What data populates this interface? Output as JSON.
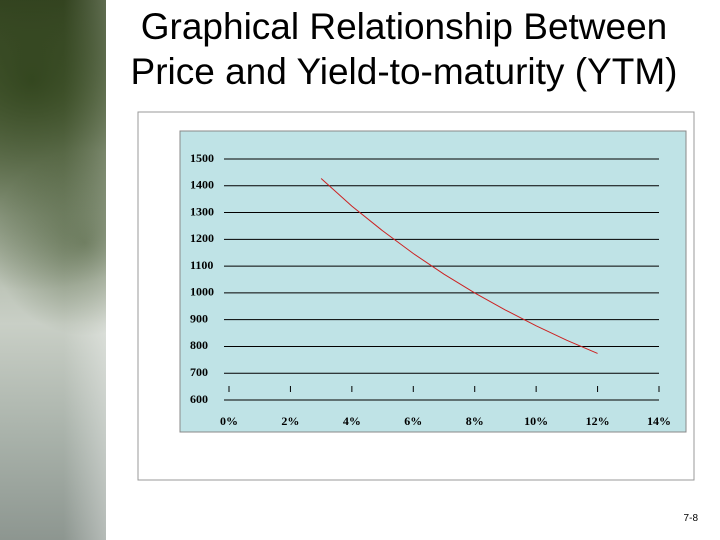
{
  "chart_data": {
    "type": "line",
    "title": "Graphical Relationship Between Price and Yield-to-maturity (YTM)",
    "x": [
      3,
      4,
      5,
      6,
      7,
      8,
      9,
      10,
      11,
      12
    ],
    "values": [
      1427,
      1324,
      1232,
      1147,
      1070,
      1000,
      936,
      877,
      823,
      774
    ],
    "color": "#cc2222",
    "xlim": [
      0,
      14
    ],
    "xticks": [
      {
        "value": 0,
        "label": "0%"
      },
      {
        "value": 2,
        "label": "2%"
      },
      {
        "value": 4,
        "label": "4%"
      },
      {
        "value": 6,
        "label": "6%"
      },
      {
        "value": 8,
        "label": "8%"
      },
      {
        "value": 10,
        "label": "10%"
      },
      {
        "value": 12,
        "label": "12%"
      },
      {
        "value": 14,
        "label": "14%"
      }
    ],
    "ylim": [
      600,
      1500
    ],
    "yticks": [
      600,
      700,
      800,
      900,
      1000,
      1100,
      1200,
      1300,
      1400,
      1500
    ],
    "grid": true
  },
  "page_number": "7-8"
}
